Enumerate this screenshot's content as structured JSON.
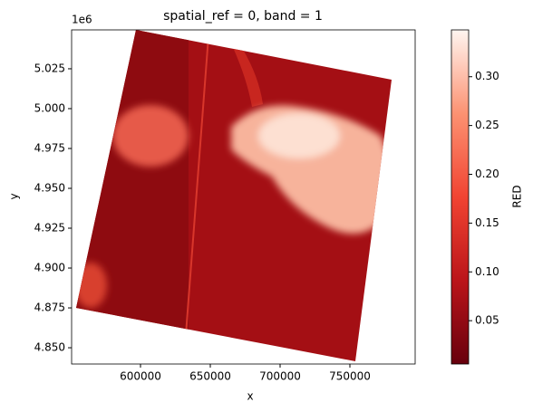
{
  "chart_data": {
    "type": "image",
    "title": "spatial_ref = 0, band = 1",
    "x_label": "x",
    "y_label": "y",
    "y_offset_label": "1e6",
    "colorbar_label": "RED",
    "xlim": [
      550650,
      796750
    ],
    "xticks": [
      600000,
      650000,
      700000,
      750000
    ],
    "ylim": [
      4839800,
      5049400
    ],
    "yticks": [
      {
        "value": 4850000,
        "label": "4.850"
      },
      {
        "value": 4875000,
        "label": "4.875"
      },
      {
        "value": 4900000,
        "label": "4.900"
      },
      {
        "value": 4925000,
        "label": "4.925"
      },
      {
        "value": 4950000,
        "label": "4.950"
      },
      {
        "value": 4975000,
        "label": "4.975"
      },
      {
        "value": 5000000,
        "label": "5.000"
      },
      {
        "value": 5025000,
        "label": "5.025"
      }
    ],
    "clim": [
      0.0056,
      0.348
    ],
    "cticks": [
      0.05,
      {
        "value": 0.1,
        "label": "0.10"
      },
      0.15,
      {
        "value": 0.2,
        "label": "0.20"
      },
      0.25,
      {
        "value": 0.3,
        "label": "0.30"
      }
    ]
  }
}
